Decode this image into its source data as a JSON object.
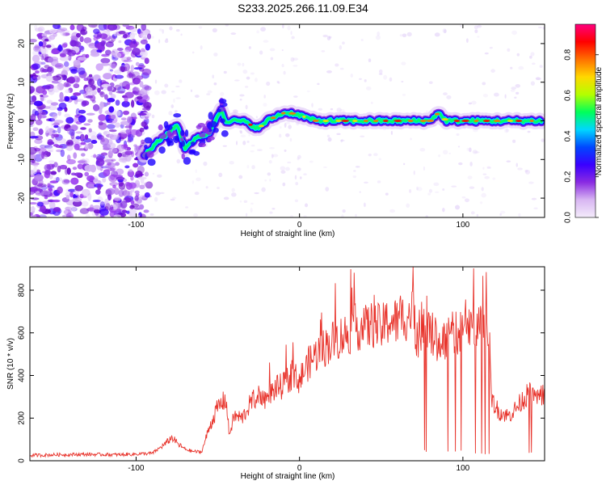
{
  "title": "S233.2025.266.11.09.E34",
  "colors": {
    "snr_line": "#e8332b",
    "axis": "#000000",
    "background": "#ffffff",
    "colorbar": [
      "#f4ecfb",
      "#d8b6f2",
      "#8a2be2",
      "#3a00ff",
      "#0047ff",
      "#00d7ff",
      "#00ff5a",
      "#b4ff00",
      "#ffd800",
      "#ff7000",
      "#ff0000",
      "#ff007f"
    ]
  },
  "chart_data": [
    {
      "type": "heatmap",
      "title": "",
      "xlabel": "Height of straight line (km)",
      "ylabel": "Frequency (Hz)",
      "xlim": [
        -165,
        150
      ],
      "ylim": [
        -25,
        25
      ],
      "x_ticks": [
        -100,
        0,
        100
      ],
      "y_ticks": [
        -20,
        -10,
        0,
        10,
        20
      ],
      "grid": false,
      "colorbar": {
        "label": "Normalized spectral amplitude",
        "range": [
          0,
          0.95
        ],
        "ticks": [
          0.0,
          0.2,
          0.4,
          0.6,
          0.8
        ]
      },
      "ridge": {
        "x": [
          -95,
          -88,
          -80,
          -75,
          -70,
          -65,
          -60,
          -55,
          -48,
          -45,
          -40,
          -35,
          -30,
          -25,
          -20,
          -15,
          -10,
          -5,
          0,
          10,
          20,
          30,
          40,
          50,
          60,
          70,
          80,
          82,
          85,
          90,
          100,
          110,
          120,
          130,
          140,
          148
        ],
        "y": [
          -9,
          -6,
          -3,
          -1,
          -7,
          -5,
          -4,
          -3,
          3,
          0,
          0,
          0,
          -1,
          -2,
          0,
          1,
          2,
          2,
          1.5,
          0,
          0,
          0,
          0,
          0,
          0,
          0,
          0,
          1,
          2,
          0,
          0,
          0,
          0,
          0,
          0,
          0
        ]
      }
    },
    {
      "type": "line",
      "title": "",
      "xlabel": "Height of straight line (km)",
      "ylabel": "SNR (10 * v/v)",
      "xlim": [
        -165,
        150
      ],
      "ylim": [
        0,
        910
      ],
      "x_ticks": [
        -100,
        0,
        100
      ],
      "y_ticks": [
        0,
        200,
        400,
        600,
        800
      ],
      "grid": false,
      "series": [
        {
          "x": [
            -165,
            -150,
            -130,
            -110,
            -90,
            -82,
            -78,
            -74,
            -70,
            -66,
            -60,
            -55,
            -50,
            -45,
            -43,
            -40,
            -35,
            -30,
            -25,
            -20,
            -15,
            -10,
            -5,
            0,
            5,
            10,
            15,
            20,
            25,
            30,
            35,
            40,
            45,
            50,
            55,
            60,
            65,
            70,
            72,
            75,
            80,
            85,
            90,
            95,
            100,
            105,
            110,
            115,
            118,
            122,
            128,
            133,
            138,
            142,
            145,
            150
          ],
          "values": [
            25,
            28,
            30,
            28,
            35,
            80,
            110,
            75,
            55,
            45,
            40,
            160,
            250,
            290,
            120,
            210,
            200,
            270,
            310,
            290,
            340,
            350,
            400,
            380,
            450,
            500,
            530,
            560,
            580,
            600,
            630,
            620,
            640,
            620,
            660,
            650,
            680,
            690,
            570,
            640,
            600,
            560,
            580,
            600,
            610,
            620,
            650,
            600,
            280,
            230,
            210,
            250,
            300,
            320,
            290,
            320
          ]
        }
      ]
    }
  ]
}
